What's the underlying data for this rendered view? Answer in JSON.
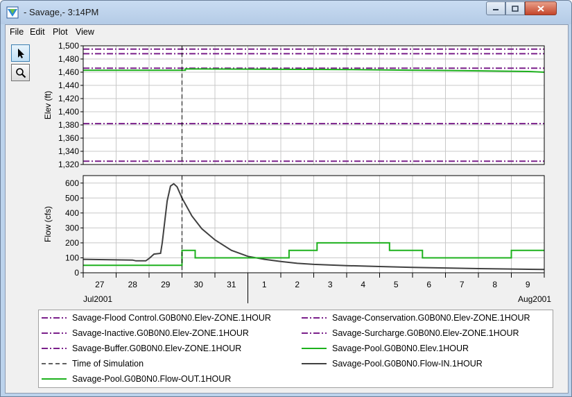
{
  "window": {
    "title": "- Savage,- 3:14PM"
  },
  "menu": [
    {
      "label": "File"
    },
    {
      "label": "Edit"
    },
    {
      "label": "Plot"
    },
    {
      "label": "View"
    }
  ],
  "toolbar": {
    "tools": [
      {
        "name": "pointer-tool",
        "icon": "arrow-pointer-icon"
      },
      {
        "name": "zoom-tool",
        "icon": "magnifier-icon"
      }
    ]
  },
  "chart_data": [
    {
      "type": "line",
      "ylabel": "Elev (ft)",
      "ylim": [
        1320,
        1500
      ],
      "yticks": [
        "1,500",
        "1,480",
        "1,460",
        "1,440",
        "1,420",
        "1,400",
        "1,380",
        "1,360",
        "1,340",
        "1,320"
      ],
      "grid": true,
      "series": [
        {
          "name": "Savage-Flood Control.G0B0N0.Elev-ZONE.1HOUR",
          "color": "#7a1f8a",
          "style": "dashdot",
          "values": [
            [
              0,
              1495
            ],
            [
              14,
              1495
            ]
          ]
        },
        {
          "name": "Savage-Conservation.G0B0N0.Elev-ZONE.1HOUR",
          "color": "#7a1f8a",
          "style": "dashdot",
          "values": [
            [
              0,
              1488
            ],
            [
              14,
              1488
            ]
          ]
        },
        {
          "name": "Savage-Surcharge.G0B0N0.Elev-ZONE.1HOUR",
          "color": "#7a1f8a",
          "style": "dashdot",
          "values": [
            [
              0,
              1466
            ],
            [
              14,
              1466
            ]
          ]
        },
        {
          "name": "Savage-Inactive.G0B0N0.Elev-ZONE.1HOUR",
          "color": "#7a1f8a",
          "style": "dashdot",
          "values": [
            [
              0,
              1382
            ],
            [
              14,
              1382
            ]
          ]
        },
        {
          "name": "Savage-Buffer.G0B0N0.Elev-ZONE.1HOUR",
          "color": "#7a1f8a",
          "style": "dashdot",
          "values": [
            [
              0,
              1325
            ],
            [
              14,
              1325
            ]
          ]
        },
        {
          "name": "Savage-Pool.G0B0N0.Elev.1HOUR",
          "color": "#1db11d",
          "style": "solid",
          "values": [
            [
              0,
              1463
            ],
            [
              3.1,
              1463
            ],
            [
              3.1,
              1465
            ],
            [
              8.1,
              1464
            ],
            [
              10.1,
              1463
            ],
            [
              12.1,
              1462
            ],
            [
              13.6,
              1461
            ],
            [
              14,
              1460
            ]
          ]
        }
      ]
    },
    {
      "type": "line",
      "ylabel": "Flow (cfs)",
      "ylim": [
        0,
        650
      ],
      "yticks": [
        "600",
        "500",
        "400",
        "300",
        "200",
        "100",
        "0"
      ],
      "grid": true,
      "series": [
        {
          "name": "Savage-Pool.G0B0N0.Flow-IN.1HOUR",
          "color": "#404040",
          "style": "solid",
          "values": [
            [
              0,
              90
            ],
            [
              1.5,
              85
            ],
            [
              1.6,
              80
            ],
            [
              1.9,
              80
            ],
            [
              2.0,
              95
            ],
            [
              2.15,
              125
            ],
            [
              2.35,
              130
            ],
            [
              2.4,
              200
            ],
            [
              2.55,
              480
            ],
            [
              2.65,
              580
            ],
            [
              2.75,
              595
            ],
            [
              2.85,
              575
            ],
            [
              3.0,
              500
            ],
            [
              3.3,
              380
            ],
            [
              3.6,
              295
            ],
            [
              4.0,
              220
            ],
            [
              4.5,
              150
            ],
            [
              5.0,
              110
            ],
            [
              5.5,
              90
            ],
            [
              6.0,
              75
            ],
            [
              6.5,
              63
            ],
            [
              7.0,
              56
            ],
            [
              8.0,
              48
            ],
            [
              9.0,
              42
            ],
            [
              10.0,
              36
            ],
            [
              11.0,
              32
            ],
            [
              12.0,
              28
            ],
            [
              13.0,
              25
            ],
            [
              14.0,
              22
            ]
          ]
        },
        {
          "name": "Savage-Pool.G0B0N0.Flow-OUT.1HOUR",
          "color": "#1db11d",
          "style": "solid",
          "values": [
            [
              0,
              50
            ],
            [
              3.0,
              50
            ],
            [
              3.0,
              150
            ],
            [
              3.4,
              150
            ],
            [
              3.4,
              100
            ],
            [
              6.25,
              100
            ],
            [
              6.25,
              150
            ],
            [
              7.1,
              150
            ],
            [
              7.1,
              200
            ],
            [
              9.3,
              200
            ],
            [
              9.3,
              150
            ],
            [
              10.3,
              150
            ],
            [
              10.3,
              100
            ],
            [
              13.0,
              100
            ],
            [
              13.0,
              150
            ],
            [
              14.0,
              150
            ]
          ]
        }
      ]
    }
  ],
  "x_axis": {
    "range_days": [
      0,
      14
    ],
    "tick_labels": [
      "27",
      "28",
      "29",
      "30",
      "31",
      "1",
      "2",
      "3",
      "4",
      "5",
      "6",
      "7",
      "8",
      "9"
    ],
    "period_labels": [
      {
        "label": "Jul2001"
      },
      {
        "label": "Aug2001"
      }
    ],
    "time_of_simulation": 3.0
  },
  "legend": [
    {
      "label": "Savage-Flood Control.G0B0N0.Elev-ZONE.1HOUR",
      "color": "#7a1f8a",
      "style": "dashdot"
    },
    {
      "label": "Savage-Conservation.G0B0N0.Elev-ZONE.1HOUR",
      "color": "#7a1f8a",
      "style": "dashdot"
    },
    {
      "label": "Savage-Inactive.G0B0N0.Elev-ZONE.1HOUR",
      "color": "#7a1f8a",
      "style": "dashdot"
    },
    {
      "label": "Savage-Surcharge.G0B0N0.Elev-ZONE.1HOUR",
      "color": "#7a1f8a",
      "style": "dashdot"
    },
    {
      "label": "Savage-Buffer.G0B0N0.Elev-ZONE.1HOUR",
      "color": "#7a1f8a",
      "style": "dashdot"
    },
    {
      "label": "Savage-Pool.G0B0N0.Elev.1HOUR",
      "color": "#1db11d",
      "style": "solid"
    },
    {
      "label": "Time of Simulation",
      "color": "#000000",
      "style": "dashed"
    },
    {
      "label": "Savage-Pool.G0B0N0.Flow-IN.1HOUR",
      "color": "#404040",
      "style": "solid"
    },
    {
      "label": "Savage-Pool.G0B0N0.Flow-OUT.1HOUR",
      "color": "#1db11d",
      "style": "solid"
    }
  ]
}
